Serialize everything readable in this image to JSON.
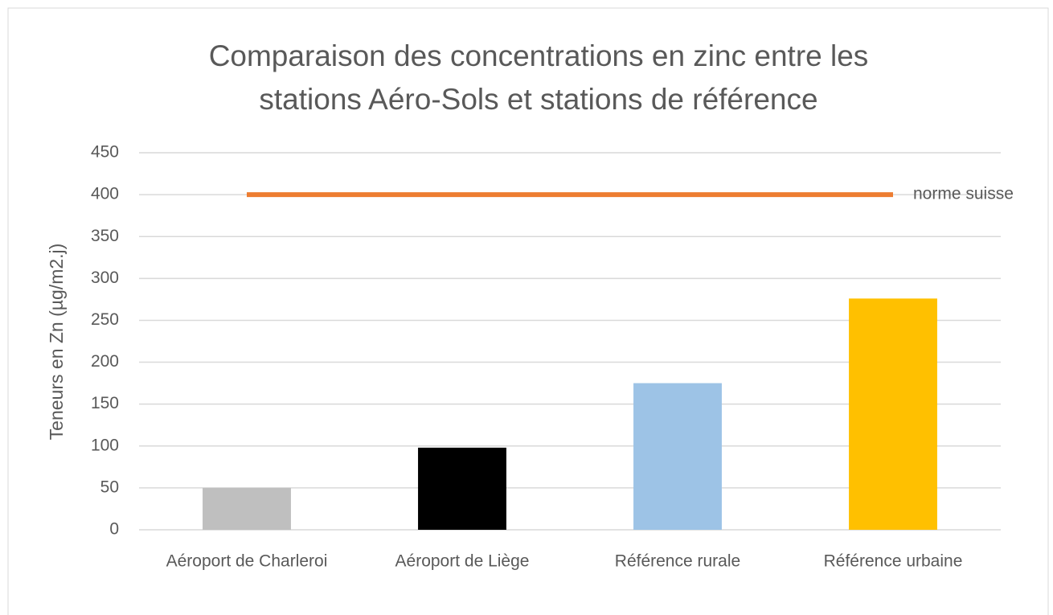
{
  "chart_data": {
    "type": "bar",
    "title": [
      "Comparaison des concentrations en zinc entre les",
      "stations Aéro-Sols et stations de référence"
    ],
    "y_label": "Teneurs en Zn (µg/m2.j)",
    "categories": [
      "Aéroport de Charleroi",
      "Aéroport de Liège",
      "Référence rurale",
      "Référence urbaine"
    ],
    "values": [
      50,
      98,
      175,
      276
    ],
    "colors": [
      "#bfbfbf",
      "#000000",
      "#9dc3e6",
      "#ffc000"
    ],
    "line": {
      "name": "norme suisse",
      "color": "#ed7d31",
      "values": [
        400,
        400,
        400,
        400
      ]
    },
    "ylim": [
      0,
      450
    ],
    "yticks": [
      0,
      50,
      100,
      150,
      200,
      250,
      300,
      350,
      400,
      450
    ],
    "grid": true
  }
}
